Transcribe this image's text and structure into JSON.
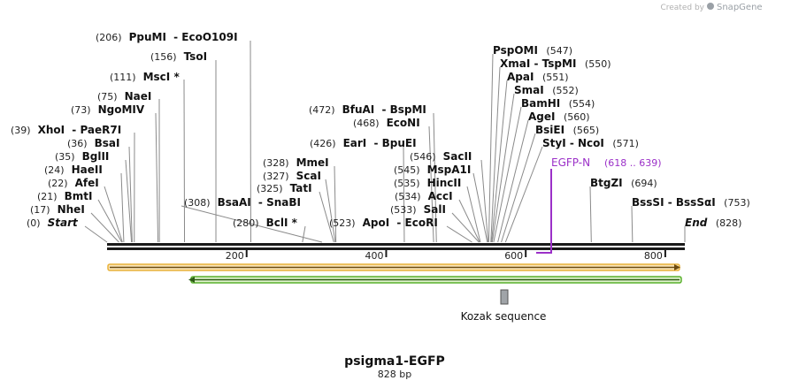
{
  "credit": {
    "prefix": "Created by",
    "brand": "SnapGene"
  },
  "plasmid": {
    "name": "psigma1-EGFP",
    "length_label": "828 bp",
    "length": 828
  },
  "axis": {
    "ticks": [
      200,
      400,
      600,
      800
    ]
  },
  "sites": [
    {
      "pos": "(206)",
      "parts": [
        "PpuMI",
        "EcoO109I"
      ],
      "star": false,
      "bp": 206
    },
    {
      "pos": "(156)",
      "parts": [
        "TsoI"
      ],
      "star": false,
      "bp": 156
    },
    {
      "pos": "(111)",
      "parts": [
        "MscI"
      ],
      "star": true,
      "bp": 111
    },
    {
      "pos": "(75)",
      "parts": [
        "NaeI"
      ],
      "star": false,
      "bp": 75
    },
    {
      "pos": "(73)",
      "parts": [
        "NgoMIV"
      ],
      "star": false,
      "bp": 73
    },
    {
      "pos": "(39)",
      "parts": [
        "XhoI",
        "PaeR7I"
      ],
      "star": false,
      "bp": 39
    },
    {
      "pos": "(36)",
      "parts": [
        "BsaI"
      ],
      "star": false,
      "bp": 36
    },
    {
      "pos": "(35)",
      "parts": [
        "BglII"
      ],
      "star": false,
      "bp": 35
    },
    {
      "pos": "(24)",
      "parts": [
        "HaeII"
      ],
      "star": false,
      "bp": 24
    },
    {
      "pos": "(22)",
      "parts": [
        "AfeI"
      ],
      "star": false,
      "bp": 22
    },
    {
      "pos": "(21)",
      "parts": [
        "BmtI"
      ],
      "star": false,
      "bp": 21
    },
    {
      "pos": "(17)",
      "parts": [
        "NheI"
      ],
      "star": false,
      "bp": 17
    },
    {
      "pos": "(0)",
      "parts": [
        "Start"
      ],
      "star": false,
      "bp": 0,
      "italic": true
    },
    {
      "pos": "(308)",
      "parts": [
        "BsaAI",
        "SnaBI"
      ],
      "star": false,
      "bp": 308
    },
    {
      "pos": "(280)",
      "parts": [
        "BclI"
      ],
      "star": true,
      "bp": 280
    },
    {
      "pos": "(328)",
      "parts": [
        "MmeI"
      ],
      "star": false,
      "bp": 328
    },
    {
      "pos": "(327)",
      "parts": [
        "ScaI"
      ],
      "star": false,
      "bp": 327
    },
    {
      "pos": "(325)",
      "parts": [
        "TatI"
      ],
      "star": false,
      "bp": 325
    },
    {
      "pos": "(472)",
      "parts": [
        "BfuAI",
        "BspMI"
      ],
      "star": false,
      "bp": 472
    },
    {
      "pos": "(468)",
      "parts": [
        "EcoNI"
      ],
      "star": false,
      "bp": 468
    },
    {
      "pos": "(426)",
      "parts": [
        "EarI",
        "BpuEI"
      ],
      "star": false,
      "bp": 426
    },
    {
      "pos": "(546)",
      "parts": [
        "SacII"
      ],
      "star": false,
      "bp": 546
    },
    {
      "pos": "(545)",
      "parts": [
        "MspA1I"
      ],
      "star": false,
      "bp": 545
    },
    {
      "pos": "(535)",
      "parts": [
        "HincII"
      ],
      "star": false,
      "bp": 535
    },
    {
      "pos": "(534)",
      "parts": [
        "AccI"
      ],
      "star": false,
      "bp": 534
    },
    {
      "pos": "(533)",
      "parts": [
        "SalI"
      ],
      "star": false,
      "bp": 533
    },
    {
      "pos": "(523)",
      "parts": [
        "ApoI",
        "EcoRI"
      ],
      "star": false,
      "bp": 523
    },
    {
      "pos": "(547)",
      "parts": [
        "PspOMI"
      ],
      "star": false,
      "bp": 547
    },
    {
      "pos": "(550)",
      "parts": [
        "XmaI",
        "TspMI"
      ],
      "star": false,
      "bp": 550
    },
    {
      "pos": "(551)",
      "parts": [
        "ApaI"
      ],
      "star": false,
      "bp": 551
    },
    {
      "pos": "(552)",
      "parts": [
        "SmaI"
      ],
      "star": false,
      "bp": 552
    },
    {
      "pos": "(554)",
      "parts": [
        "BamHI"
      ],
      "star": false,
      "bp": 554
    },
    {
      "pos": "(560)",
      "parts": [
        "AgeI"
      ],
      "star": false,
      "bp": 560
    },
    {
      "pos": "(565)",
      "parts": [
        "BsiEI"
      ],
      "star": false,
      "bp": 565
    },
    {
      "pos": "(571)",
      "parts": [
        "StyI",
        "NcoI"
      ],
      "star": false,
      "bp": 571
    },
    {
      "pos": "(694)",
      "parts": [
        "BtgZI"
      ],
      "star": false,
      "bp": 694
    },
    {
      "pos": "(753)",
      "parts": [
        "BssSI",
        "BssSαI"
      ],
      "star": false,
      "bp": 753
    },
    {
      "pos": "(828)",
      "parts": [
        "End"
      ],
      "star": false,
      "bp": 828,
      "italic": true
    }
  ],
  "primer": {
    "name": "EGFP-N",
    "range": "(618 .. 639)",
    "color": "#9b30c8"
  },
  "features": {
    "forward_color": "#e8b23a",
    "reverse_color": "#58b02c",
    "kozak": {
      "label": "Kozak sequence",
      "color": "#a0a4a8"
    }
  },
  "colors": {
    "backbone": "#1a1a1a",
    "leader": "#8a8a8a"
  }
}
